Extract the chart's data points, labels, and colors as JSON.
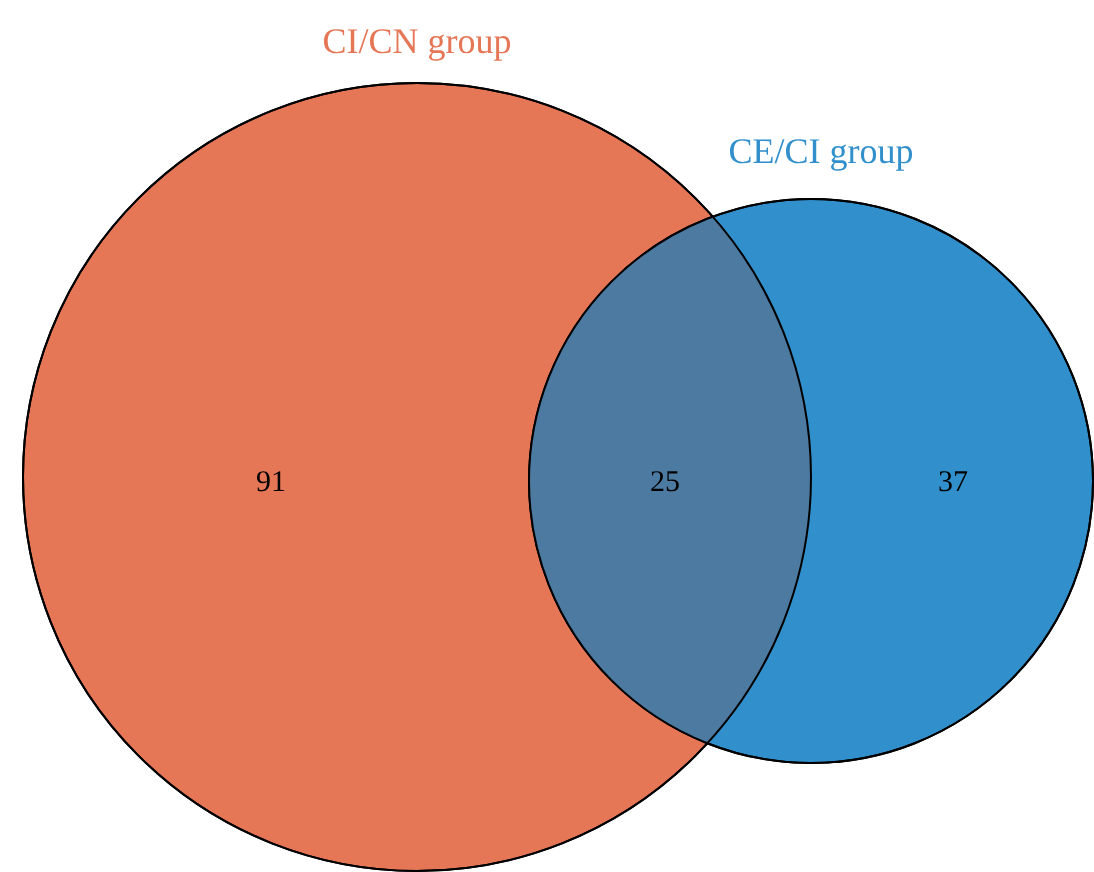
{
  "chart_data": {
    "type": "other",
    "categories": [
      "CI/CN group",
      null,
      "CE/CI group"
    ],
    "values": [
      91,
      25,
      37
    ],
    "data_labels": true,
    "colors": [
      "#e57656",
      "#4d7aa0",
      "#3190cc"
    ]
  }
}
